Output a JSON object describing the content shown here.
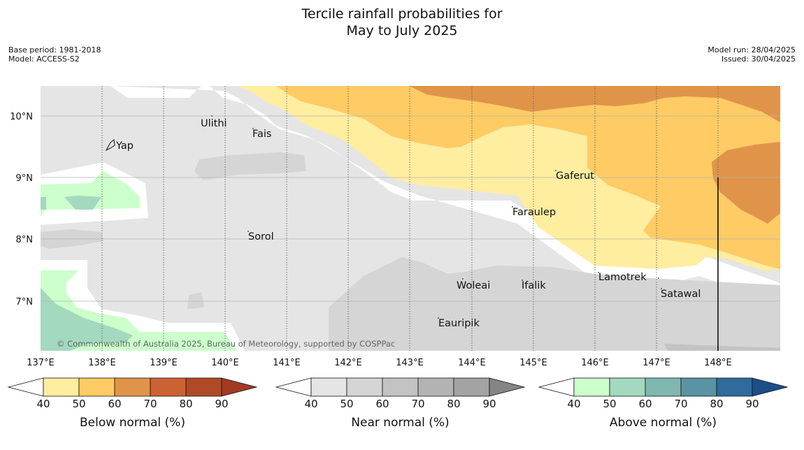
{
  "title_line1": "Tercile rainfall probabilities for",
  "title_line2": "May to July 2025",
  "base_period": "Base period: 1981-2018",
  "model": "Model: ACCESS-S2",
  "model_run": "Model run: 28/04/2025",
  "issued": "Issued: 30/04/2025",
  "copyright": "© Commonwealth of Australia 2025, Bureau of Meteorology, supported by COSPPac",
  "lat_labels": [
    "10°N",
    "9°N",
    "8°N",
    "7°N"
  ],
  "lon_labels": [
    "137°E",
    "138°E",
    "139°E",
    "140°E",
    "141°E",
    "142°E",
    "143°E",
    "144°E",
    "145°E",
    "146°E",
    "147°E",
    "148°E"
  ],
  "places": [
    {
      "name": "Yap"
    },
    {
      "name": "Ulithi"
    },
    {
      "name": "Fais"
    },
    {
      "name": "Gaferut"
    },
    {
      "name": "Faraulep"
    },
    {
      "name": "Sorol"
    },
    {
      "name": "Woleai"
    },
    {
      "name": "Ifalik"
    },
    {
      "name": "Lamotrek"
    },
    {
      "name": "Satawal"
    },
    {
      "name": "Eauripik"
    }
  ],
  "colorbars": [
    {
      "label": "Below normal (%)",
      "ticks": [
        "40",
        "50",
        "60",
        "70",
        "80",
        "90"
      ],
      "colors": [
        "#ffeda0",
        "#fecb65",
        "#e0944a",
        "#cc6233",
        "#b04a26"
      ],
      "under": "#ffffff",
      "over": "#a33a22"
    },
    {
      "label": "Near normal (%)",
      "ticks": [
        "40",
        "50",
        "60",
        "70",
        "80",
        "90"
      ],
      "colors": [
        "#e5e5e5",
        "#d5d5d5",
        "#c3c3c3",
        "#b3b3b3",
        "#a3a3a3"
      ],
      "under": "#ffffff",
      "over": "#858585"
    },
    {
      "label": "Above normal (%)",
      "ticks": [
        "40",
        "50",
        "60",
        "70",
        "80",
        "90"
      ],
      "colors": [
        "#ccffcc",
        "#a3d9be",
        "#80b7b0",
        "#5a93a3",
        "#2f6b9c"
      ],
      "under": "#ffffff",
      "over": "#1c4f88"
    }
  ]
}
